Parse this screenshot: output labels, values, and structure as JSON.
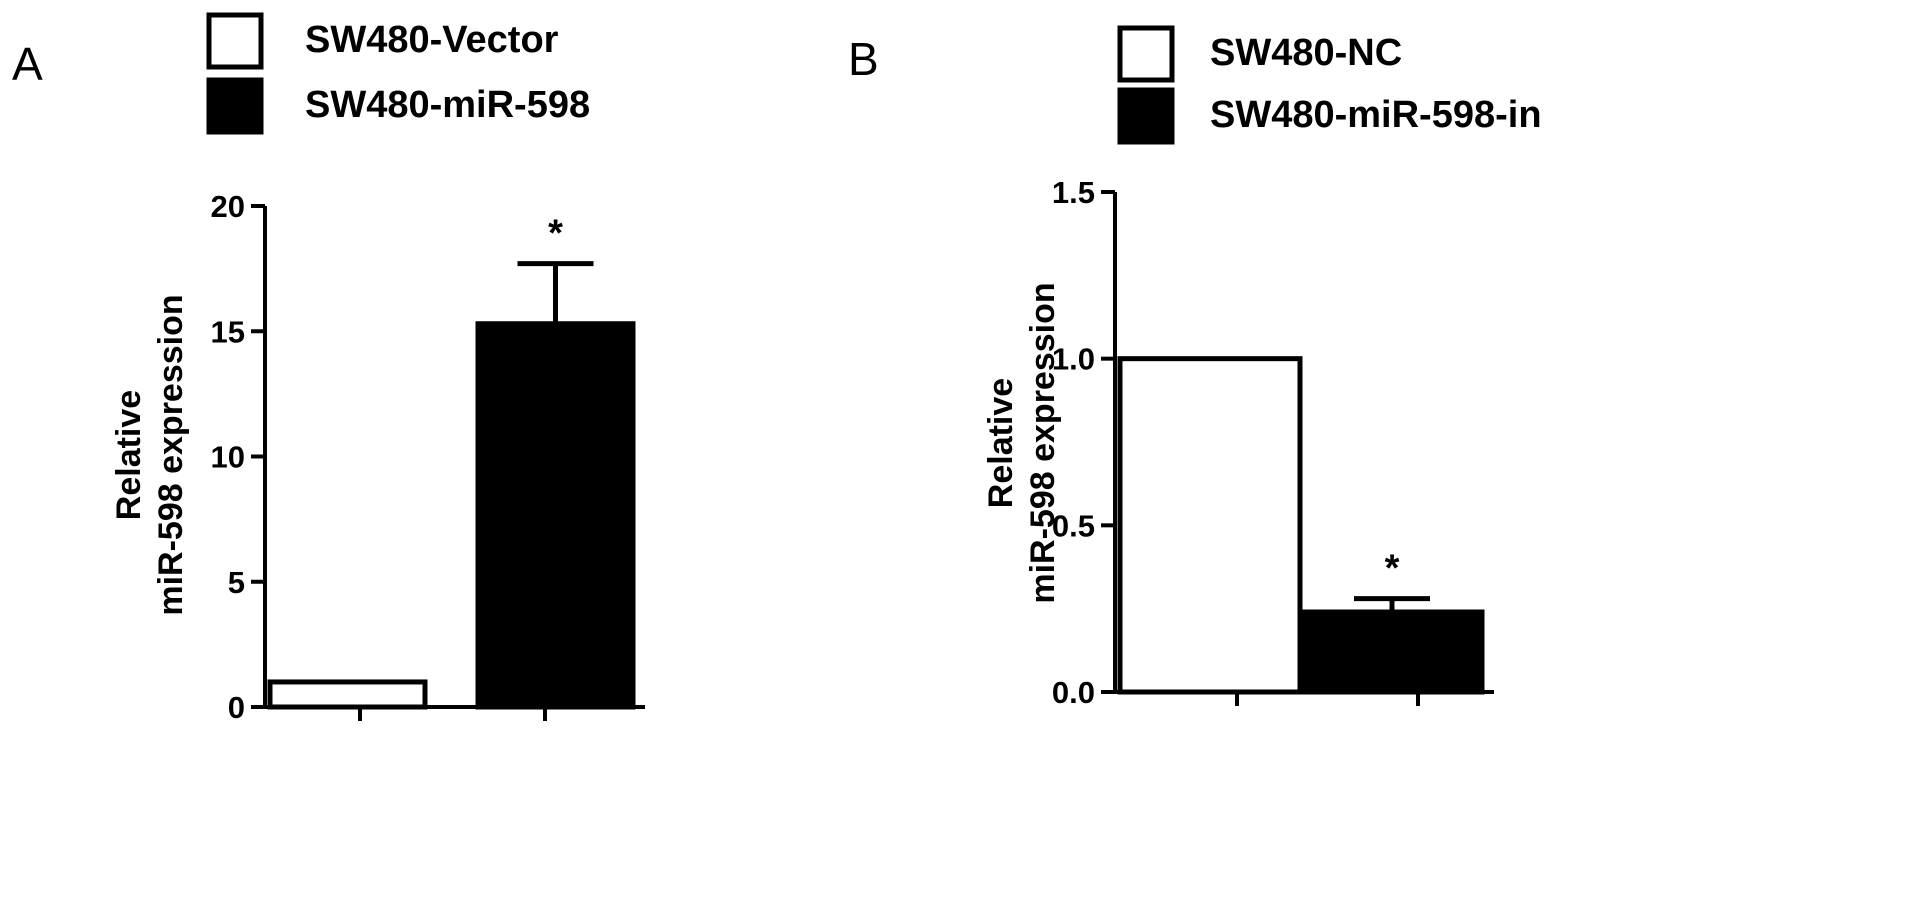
{
  "chart_data": [
    {
      "type": "bar",
      "panel_label": "A",
      "ylabel": [
        "Relative",
        "miR-598 expression"
      ],
      "ylim": [
        0,
        20
      ],
      "yticks": [
        0,
        5,
        10,
        15,
        20
      ],
      "bar_style": "bar with single upper error bar",
      "series": [
        {
          "name": "SW480-Vector",
          "color": "#ffffff",
          "value": 1.0,
          "error": 0.0,
          "annotation": ""
        },
        {
          "name": "SW480-miR-598",
          "color": "#000000",
          "value": 15.3,
          "error": 2.4,
          "annotation": "*"
        }
      ]
    },
    {
      "type": "bar",
      "panel_label": "B",
      "ylabel": [
        "Relative",
        "miR-598 expression"
      ],
      "ylim": [
        0,
        1.5
      ],
      "yticks": [
        0.0,
        0.5,
        1.0,
        1.5
      ],
      "series": [
        {
          "name": "SW480-NC",
          "color": "#ffffff",
          "value": 1.0,
          "error": 0.0,
          "annotation": ""
        },
        {
          "name": "SW480-miR-598-in",
          "color": "#000000",
          "value": 0.24,
          "error": 0.04,
          "annotation": "*"
        }
      ]
    }
  ]
}
